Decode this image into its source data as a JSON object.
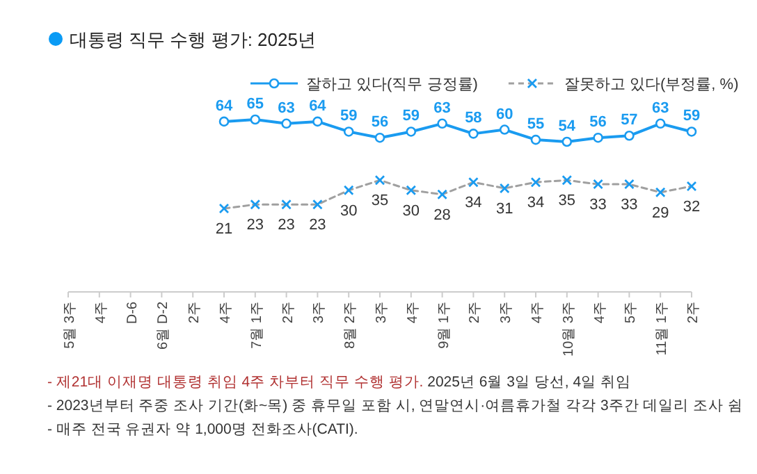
{
  "chart_data": {
    "type": "line",
    "title": "대통령 직무 수행 평가: 2025년",
    "categories": [
      "5월 3주",
      "4주",
      "D-6",
      "6월 D-2",
      "2주",
      "4주",
      "7월 1주",
      "2주",
      "3주",
      "8월 2주",
      "3주",
      "4주",
      "9월 1주",
      "2주",
      "3주",
      "4주",
      "10월 3주",
      "4주",
      "5주",
      "11월 1주",
      "2주"
    ],
    "series": [
      {
        "name": "잘하고 있다(직무 긍정률)",
        "color": "#1a9bf0",
        "marker": "circle",
        "line_style": "solid",
        "values": [
          null,
          null,
          null,
          null,
          null,
          64,
          65,
          63,
          64,
          59,
          56,
          59,
          63,
          58,
          60,
          55,
          54,
          56,
          57,
          63,
          59
        ]
      },
      {
        "name": "잘못하고 있다(부정률, %)",
        "color": "#a0a0a0",
        "marker": "cross",
        "line_style": "dashed",
        "values": [
          null,
          null,
          null,
          null,
          null,
          21,
          23,
          23,
          23,
          30,
          35,
          30,
          28,
          34,
          31,
          34,
          35,
          33,
          33,
          29,
          32
        ]
      }
    ],
    "data_labels": true,
    "legend": "top",
    "annotations": [
      "- 제21대 이재명 대통령 취임 4주 차부터 직무 수행 평가.",
      "2025년 6월 3일 당선, 4일 취임",
      "- 2023년부터 주중 조사 기간(화~목) 중 휴무일 포함 시, 연말연시·여름휴가철 각각 3주간 데일리 조사 쉼",
      "- 매주 전국 유권자 약 1,000명 전화조사(CATI)."
    ]
  }
}
